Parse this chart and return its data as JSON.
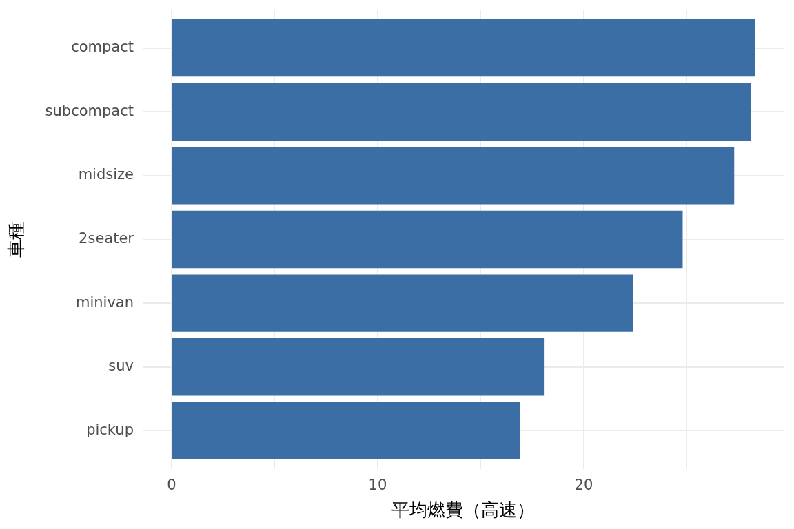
{
  "chart_data": {
    "type": "bar",
    "orientation": "horizontal",
    "xlabel": "平均燃費（高速）",
    "ylabel": "車種",
    "categories": [
      "compact",
      "subcompact",
      "midsize",
      "2seater",
      "minivan",
      "suv",
      "pickup"
    ],
    "values": [
      28.3,
      28.1,
      27.3,
      24.8,
      22.4,
      18.1,
      16.9
    ],
    "color": "#3a6ea5",
    "xlim": [
      -1.4,
      29.7
    ],
    "xticks": [
      0,
      {
        "value": 5,
        "label": null
      },
      10,
      {
        "value": 15,
        "label": null
      },
      20,
      {
        "value": 25,
        "label": null
      }
    ],
    "grid": true
  }
}
